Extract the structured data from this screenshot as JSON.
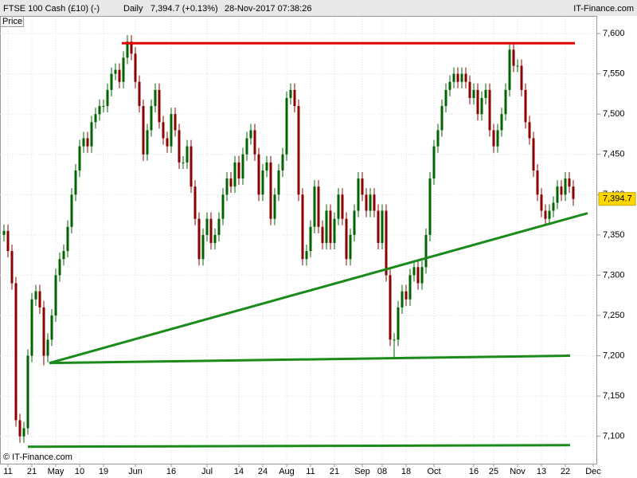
{
  "header": {
    "instrument": "FTSE 100 Cash (£10) (-)",
    "period": "Daily",
    "quote": "7,394.7 (+0.13%)",
    "timestamp": "28-Nov-2017 07:38:26",
    "brand": "IT-Finance.com"
  },
  "chart_data": {
    "type": "candlestick",
    "y_label": "Price",
    "copyright": "© IT-Finance.com",
    "up_color": "#006400",
    "down_color": "#8b0000",
    "grid": true,
    "xlim": [
      -1,
      149
    ],
    "ylim": [
      7068,
      7609
    ],
    "xticks": [
      {
        "value": 1,
        "label": "11"
      },
      {
        "value": 7,
        "label": "21"
      },
      {
        "value": 13,
        "label": "May"
      },
      {
        "value": 19,
        "label": "10"
      },
      {
        "value": 25,
        "label": "19"
      },
      {
        "value": 33,
        "label": "Jun"
      },
      {
        "value": 42,
        "label": "16"
      },
      {
        "value": 51,
        "label": "Jul"
      },
      {
        "value": 59,
        "label": "14"
      },
      {
        "value": 65,
        "label": "24"
      },
      {
        "value": 71,
        "label": "Aug"
      },
      {
        "value": 77,
        "label": "11"
      },
      {
        "value": 83,
        "label": "21"
      },
      {
        "value": 90,
        "label": "Sep"
      },
      {
        "value": 95,
        "label": "08"
      },
      {
        "value": 101,
        "label": "18"
      },
      {
        "value": 108,
        "label": "Oct"
      },
      {
        "value": 118,
        "label": "16"
      },
      {
        "value": 123,
        "label": "25"
      },
      {
        "value": 129,
        "label": "Nov"
      },
      {
        "value": 135,
        "label": "13"
      },
      {
        "value": 141,
        "label": "22"
      },
      {
        "value": 148,
        "label": "Dec"
      }
    ],
    "yticks": [
      {
        "value": 7100,
        "label": "7,100"
      },
      {
        "value": 7150,
        "label": "7,150"
      },
      {
        "value": 7200,
        "label": "7,200"
      },
      {
        "value": 7250,
        "label": "7,250"
      },
      {
        "value": 7300,
        "label": "7,300"
      },
      {
        "value": 7350,
        "label": "7,350"
      },
      {
        "value": 7400,
        "label": "7,400"
      },
      {
        "value": 7450,
        "label": "7,450"
      },
      {
        "value": 7500,
        "label": "7,500"
      },
      {
        "value": 7550,
        "label": "7,550"
      },
      {
        "value": 7600,
        "label": "7,600"
      }
    ],
    "last_label": {
      "value": 7394.7,
      "label": "7,394.7"
    },
    "open": [
      7350,
      7355,
      7330,
      7290,
      7120,
      7100,
      7110,
      7200,
      7270,
      7280,
      7260,
      7200,
      7220,
      7250,
      7300,
      7320,
      7330,
      7360,
      7400,
      7430,
      7460,
      7470,
      7460,
      7490,
      7500,
      7510,
      7510,
      7530,
      7550,
      7555,
      7540,
      7570,
      7590,
      7575,
      7540,
      7510,
      7450,
      7480,
      7510,
      7530,
      7490,
      7470,
      7460,
      7500,
      7480,
      7440,
      7440,
      7460,
      7410,
      7370,
      7320,
      7350,
      7370,
      7340,
      7350,
      7370,
      7400,
      7420,
      7410,
      7440,
      7420,
      7450,
      7470,
      7480,
      7450,
      7400,
      7430,
      7440,
      7370,
      7400,
      7430,
      7450,
      7520,
      7530,
      7510,
      7400,
      7320,
      7330,
      7360,
      7410,
      7360,
      7340,
      7380,
      7340,
      7370,
      7400,
      7370,
      7320,
      7350,
      7380,
      7420,
      7400,
      7380,
      7400,
      7380,
      7340,
      7380,
      7300,
      7220,
      7220,
      7260,
      7280,
      7270,
      7300,
      7310,
      7290,
      7310,
      7350,
      7420,
      7460,
      7480,
      7510,
      7530,
      7540,
      7550,
      7540,
      7550,
      7540,
      7520,
      7530,
      7500,
      7520,
      7530,
      7480,
      7460,
      7480,
      7500,
      7530,
      7580,
      7560,
      7560,
      7530,
      7490,
      7470,
      7430,
      7400,
      7380,
      7370,
      7380,
      7390,
      7410,
      7400,
      7420,
      7410
    ],
    "high": [
      7363,
      7363,
      7338,
      7298,
      7128,
      7118,
      7208,
      7278,
      7288,
      7288,
      7268,
      7228,
      7258,
      7308,
      7328,
      7338,
      7368,
      7408,
      7438,
      7468,
      7478,
      7478,
      7498,
      7508,
      7518,
      7518,
      7538,
      7558,
      7563,
      7563,
      7578,
      7598,
      7598,
      7583,
      7548,
      7518,
      7488,
      7518,
      7538,
      7538,
      7498,
      7478,
      7508,
      7508,
      7488,
      7448,
      7468,
      7468,
      7418,
      7378,
      7358,
      7378,
      7378,
      7358,
      7378,
      7408,
      7428,
      7428,
      7448,
      7448,
      7458,
      7478,
      7488,
      7488,
      7458,
      7438,
      7448,
      7448,
      7408,
      7438,
      7458,
      7528,
      7538,
      7538,
      7518,
      7408,
      7338,
      7368,
      7418,
      7418,
      7368,
      7388,
      7388,
      7378,
      7408,
      7408,
      7378,
      7358,
      7388,
      7428,
      7428,
      7408,
      7408,
      7408,
      7388,
      7388,
      7388,
      7308,
      7228,
      7268,
      7288,
      7288,
      7308,
      7318,
      7318,
      7318,
      7358,
      7428,
      7468,
      7488,
      7518,
      7538,
      7548,
      7558,
      7558,
      7558,
      7558,
      7548,
      7538,
      7538,
      7528,
      7538,
      7538,
      7488,
      7488,
      7508,
      7538,
      7588,
      7588,
      7568,
      7568,
      7538,
      7498,
      7478,
      7438,
      7408,
      7388,
      7388,
      7398,
      7418,
      7418,
      7428,
      7428,
      7418
    ],
    "low": [
      7342,
      7322,
      7282,
      7112,
      7092,
      7092,
      7102,
      7192,
      7262,
      7252,
      7188,
      7192,
      7212,
      7242,
      7292,
      7312,
      7322,
      7352,
      7392,
      7422,
      7452,
      7452,
      7452,
      7482,
      7492,
      7502,
      7502,
      7522,
      7542,
      7532,
      7532,
      7562,
      7567,
      7532,
      7502,
      7442,
      7442,
      7472,
      7502,
      7482,
      7462,
      7452,
      7452,
      7472,
      7432,
      7432,
      7432,
      7402,
      7362,
      7312,
      7312,
      7342,
      7332,
      7332,
      7342,
      7362,
      7392,
      7402,
      7402,
      7412,
      7412,
      7442,
      7462,
      7442,
      7392,
      7392,
      7422,
      7362,
      7362,
      7392,
      7422,
      7442,
      7512,
      7502,
      7392,
      7312,
      7312,
      7322,
      7352,
      7352,
      7332,
      7332,
      7332,
      7332,
      7362,
      7362,
      7312,
      7312,
      7342,
      7372,
      7392,
      7372,
      7372,
      7372,
      7332,
      7332,
      7292,
      7212,
      7196,
      7212,
      7252,
      7262,
      7262,
      7292,
      7282,
      7282,
      7302,
      7342,
      7412,
      7452,
      7472,
      7502,
      7522,
      7532,
      7532,
      7532,
      7532,
      7512,
      7512,
      7492,
      7492,
      7512,
      7472,
      7452,
      7452,
      7472,
      7492,
      7522,
      7552,
      7552,
      7522,
      7482,
      7462,
      7422,
      7392,
      7372,
      7362,
      7362,
      7372,
      7382,
      7392,
      7392,
      7402,
      7386
    ],
    "close": [
      7355,
      7330,
      7290,
      7120,
      7100,
      7110,
      7200,
      7270,
      7280,
      7260,
      7200,
      7220,
      7250,
      7300,
      7320,
      7330,
      7360,
      7400,
      7430,
      7460,
      7470,
      7460,
      7490,
      7500,
      7510,
      7510,
      7530,
      7550,
      7555,
      7540,
      7570,
      7590,
      7575,
      7540,
      7510,
      7450,
      7480,
      7510,
      7530,
      7490,
      7470,
      7460,
      7500,
      7480,
      7440,
      7440,
      7460,
      7410,
      7370,
      7320,
      7350,
      7370,
      7340,
      7350,
      7370,
      7400,
      7420,
      7410,
      7440,
      7420,
      7450,
      7470,
      7480,
      7450,
      7400,
      7430,
      7440,
      7370,
      7400,
      7430,
      7450,
      7520,
      7530,
      7510,
      7400,
      7320,
      7330,
      7360,
      7410,
      7360,
      7340,
      7380,
      7340,
      7370,
      7400,
      7370,
      7320,
      7350,
      7380,
      7420,
      7400,
      7380,
      7400,
      7380,
      7340,
      7380,
      7300,
      7220,
      7220,
      7260,
      7280,
      7270,
      7300,
      7310,
      7290,
      7310,
      7350,
      7420,
      7460,
      7480,
      7510,
      7530,
      7540,
      7550,
      7540,
      7550,
      7540,
      7520,
      7530,
      7500,
      7520,
      7530,
      7480,
      7460,
      7480,
      7500,
      7530,
      7580,
      7560,
      7560,
      7530,
      7490,
      7470,
      7430,
      7400,
      7380,
      7370,
      7380,
      7390,
      7410,
      7400,
      7420,
      7410,
      7394.7
    ],
    "lines": [
      {
        "color": "#e00000",
        "x": [
          29.6,
          143.4
        ],
        "y": [
          7588,
          7588
        ]
      },
      {
        "color": "#1a8a1a",
        "x": [
          11.4,
          146.6
        ],
        "y": [
          7191,
          7377
        ]
      },
      {
        "color": "#1a8a1a",
        "x": [
          11.4,
          142.2
        ],
        "y": [
          7191,
          7200
        ]
      },
      {
        "color": "#1a8a1a",
        "x": [
          6,
          142.2
        ],
        "y": [
          7087,
          7089
        ]
      }
    ]
  }
}
